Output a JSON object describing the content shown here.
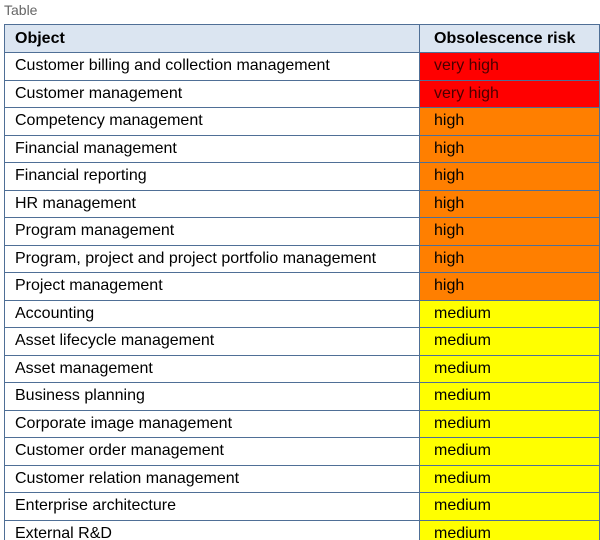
{
  "caption": "Table",
  "table": {
    "headers": [
      "Object",
      "Obsolescence risk"
    ],
    "rows": [
      {
        "object": "Customer billing and collection management",
        "risk": "very high"
      },
      {
        "object": "Customer management",
        "risk": "very high"
      },
      {
        "object": "Competency management",
        "risk": "high"
      },
      {
        "object": "Financial management",
        "risk": "high"
      },
      {
        "object": "Financial reporting",
        "risk": "high"
      },
      {
        "object": "HR management",
        "risk": "high"
      },
      {
        "object": "Program management",
        "risk": "high"
      },
      {
        "object": "Program, project and project portfolio management",
        "risk": "high"
      },
      {
        "object": "Project management",
        "risk": "high"
      },
      {
        "object": "Accounting",
        "risk": "medium"
      },
      {
        "object": "Asset lifecycle management",
        "risk": "medium"
      },
      {
        "object": "Asset management",
        "risk": "medium"
      },
      {
        "object": "Business planning",
        "risk": "medium"
      },
      {
        "object": "Corporate image management",
        "risk": "medium"
      },
      {
        "object": "Customer order management",
        "risk": "medium"
      },
      {
        "object": "Customer relation management",
        "risk": "medium"
      },
      {
        "object": "Enterprise architecture",
        "risk": "medium"
      },
      {
        "object": "External R&D",
        "risk": "medium"
      }
    ]
  },
  "colors": {
    "header_background": "#dbe5f1",
    "border": "#4f6f96",
    "very_high": "#ff0000",
    "high": "#ff7f00",
    "medium": "#ffff00"
  }
}
